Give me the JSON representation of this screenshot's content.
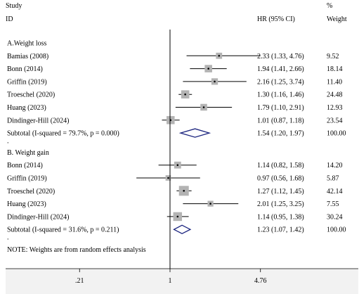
{
  "header": {
    "study_label": "Study",
    "id_label": "ID",
    "hr_label": "HR (95% CI)",
    "pct_label": "%",
    "weight_label": "Weight"
  },
  "note": "NOTE: Weights are from random effects analysis",
  "colors": {
    "line": "#000000",
    "box": "#b3b3b3",
    "diamond": "#1a237e",
    "axis_band": "#f2f2f2"
  },
  "chart_data": {
    "type": "forest",
    "scale": "log",
    "xlim": [
      0.21,
      4.76
    ],
    "xticks": [
      {
        "value": 0.21,
        "label": ".21"
      },
      {
        "value": 1,
        "label": "1"
      },
      {
        "value": 4.76,
        "label": "4.76"
      }
    ],
    "reference_line": 1,
    "groups": [
      {
        "title": "A.Weight loss",
        "studies": [
          {
            "id": "Bamias (2008)",
            "hr": 2.33,
            "lo": 1.33,
            "hi": 4.76,
            "ci_text": "2.33 (1.33, 4.76)",
            "weight": "9.52"
          },
          {
            "id": "Bonn (2014)",
            "hr": 1.94,
            "lo": 1.41,
            "hi": 2.66,
            "ci_text": "1.94 (1.41, 2.66)",
            "weight": "18.14"
          },
          {
            "id": "Griffin  (2019)",
            "hr": 2.16,
            "lo": 1.25,
            "hi": 3.74,
            "ci_text": "2.16 (1.25, 3.74)",
            "weight": "11.40"
          },
          {
            "id": "Troeschel  (2020)",
            "hr": 1.3,
            "lo": 1.16,
            "hi": 1.46,
            "ci_text": "1.30 (1.16, 1.46)",
            "weight": "24.48"
          },
          {
            "id": "Huang (2023)",
            "hr": 1.79,
            "lo": 1.1,
            "hi": 2.91,
            "ci_text": "1.79 (1.10, 2.91)",
            "weight": "12.93"
          },
          {
            "id": "Dindinger-Hill (2024)",
            "hr": 1.01,
            "lo": 0.87,
            "hi": 1.18,
            "ci_text": "1.01 (0.87, 1.18)",
            "weight": "23.54"
          }
        ],
        "subtotal": {
          "label": "Subtotal  (I-squared = 79.7%, p = 0.000)",
          "hr": 1.54,
          "lo": 1.2,
          "hi": 1.97,
          "ci_text": "1.54 (1.20, 1.97)",
          "weight": "100.00"
        },
        "separator": "."
      },
      {
        "title": "B. Weight gain",
        "studies": [
          {
            "id": "Bonn (2014)",
            "hr": 1.14,
            "lo": 0.82,
            "hi": 1.58,
            "ci_text": "1.14 (0.82, 1.58)",
            "weight": "14.20"
          },
          {
            "id": "Griffin  (2019)",
            "hr": 0.97,
            "lo": 0.56,
            "hi": 1.68,
            "ci_text": "0.97 (0.56, 1.68)",
            "weight": "5.87"
          },
          {
            "id": "Troeschel  (2020)",
            "hr": 1.27,
            "lo": 1.12,
            "hi": 1.45,
            "ci_text": "1.27 (1.12, 1.45)",
            "weight": "42.14"
          },
          {
            "id": "Huang (2023)",
            "hr": 2.01,
            "lo": 1.25,
            "hi": 3.25,
            "ci_text": "2.01 (1.25, 3.25)",
            "weight": "7.55"
          },
          {
            "id": "Dindinger-Hill (2024)",
            "hr": 1.14,
            "lo": 0.95,
            "hi": 1.38,
            "ci_text": "1.14 (0.95, 1.38)",
            "weight": "30.24"
          }
        ],
        "subtotal": {
          "label": "Subtotal  (I-squared = 31.6%, p = 0.211)",
          "hr": 1.23,
          "lo": 1.07,
          "hi": 1.42,
          "ci_text": "1.23 (1.07, 1.42)",
          "weight": "100.00"
        },
        "separator": "."
      }
    ]
  }
}
